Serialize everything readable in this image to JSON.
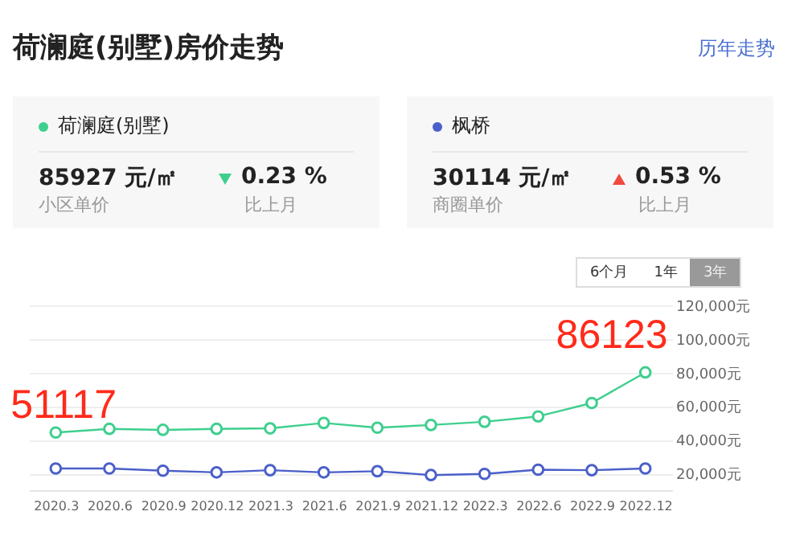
{
  "chart_data": {
    "type": "line",
    "title": "荷澜庭(别墅)房价走势",
    "categories": [
      "2020.3",
      "2020.6",
      "2020.9",
      "2020.12",
      "2021.3",
      "2021.6",
      "2021.9",
      "2021.12",
      "2022.3",
      "2022.6",
      "2022.9",
      "2022.12"
    ],
    "series": [
      {
        "name": "荷澜庭(别墅)",
        "color": "#3ecf8e",
        "values": [
          44300,
          46500,
          45900,
          46500,
          46800,
          50000,
          47200,
          48800,
          50700,
          53900,
          61900,
          80100
        ]
      },
      {
        "name": "枫桥",
        "color": "#4a5fc9",
        "values": [
          22900,
          22900,
          21600,
          20600,
          21900,
          20600,
          21300,
          19000,
          19700,
          22200,
          21900,
          22900
        ]
      }
    ],
    "ylim": [
      10000,
      120000
    ],
    "yticks": [
      {
        "value": 20000,
        "label": "20,000元"
      },
      {
        "value": 40000,
        "label": "40,000元"
      },
      {
        "value": 60000,
        "label": "60,000元"
      },
      {
        "value": 80000,
        "label": "80,000元"
      },
      {
        "value": 100000,
        "label": "100,000元"
      },
      {
        "value": 120000,
        "label": "120,000元"
      }
    ],
    "grid": "y",
    "marker": "circle",
    "line_style": "solid",
    "legend": "top",
    "annotations": [
      "历年走势",
      "85927 元/㎡",
      "小区单价",
      "0.23 %",
      "比上月",
      "30114 元/㎡",
      "商圈单价",
      "0.53 %",
      "比上月",
      "6个月",
      "1年",
      "3年",
      {
        "text": "51117",
        "x": "2020.3",
        "y": 44300
      },
      {
        "text": "86123",
        "x": "2022.12",
        "y": 80100
      }
    ]
  }
}
